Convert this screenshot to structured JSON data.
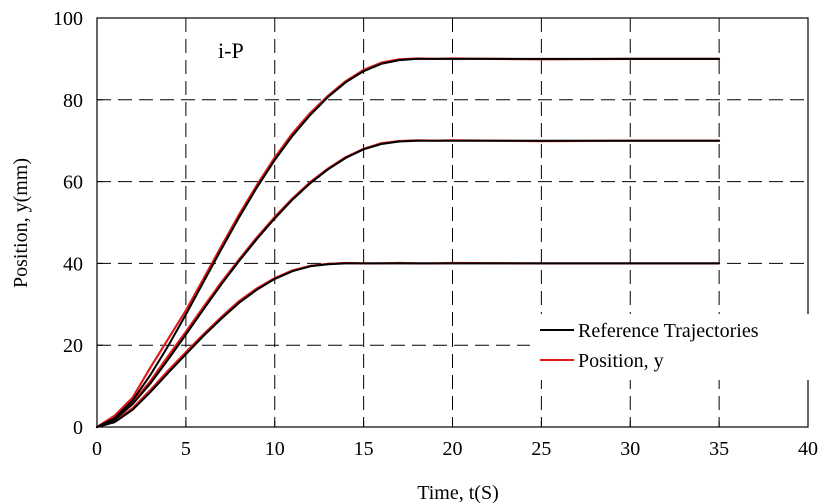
{
  "chart_data": {
    "type": "line",
    "title": "",
    "annotation": "i-P",
    "xlabel": "Time, t(S)",
    "ylabel": "Position, y(mm)",
    "xlim": [
      0,
      40
    ],
    "ylim": [
      0,
      100
    ],
    "x_ticks": [
      0,
      5,
      10,
      15,
      20,
      25,
      30,
      35,
      40
    ],
    "y_ticks": [
      0,
      20,
      40,
      60,
      80,
      100
    ],
    "grid": true,
    "legend_position": "bottom-right",
    "legend": [
      "Reference Trajectories",
      "Position, y"
    ],
    "colors": {
      "reference": "#000000",
      "position": "#e01b1b"
    },
    "x": [
      0,
      1,
      2,
      3,
      4,
      5,
      6,
      7,
      8,
      9,
      10,
      11,
      12,
      13,
      14,
      15,
      16,
      17,
      18,
      19,
      20,
      25,
      30,
      35
    ],
    "series": [
      {
        "name": "Reference Trajectories",
        "target": 40,
        "values": [
          0,
          1.2,
          4.2,
          8.5,
          13.2,
          17.8,
          22.3,
          26.5,
          30.4,
          33.6,
          36.2,
          38.1,
          39.3,
          39.8,
          40,
          40,
          40,
          40,
          40,
          40,
          40,
          40,
          40,
          40
        ]
      },
      {
        "name": "Reference Trajectories",
        "target": 70,
        "values": [
          0,
          1.8,
          5.6,
          10.6,
          16.5,
          22.6,
          28.8,
          34.9,
          40.6,
          46.0,
          51.0,
          55.6,
          59.6,
          63.0,
          65.8,
          67.9,
          69.2,
          69.8,
          70,
          70,
          70,
          70,
          70,
          70
        ]
      },
      {
        "name": "Reference Trajectories",
        "target": 90,
        "values": [
          0,
          2.2,
          6.5,
          12.7,
          19.8,
          27.5,
          35.5,
          43.5,
          51.3,
          58.6,
          65.3,
          71.2,
          76.3,
          80.7,
          84.3,
          87.0,
          88.8,
          89.7,
          90,
          90,
          90,
          90,
          90,
          90
        ]
      },
      {
        "name": "Position, y",
        "target": 40,
        "values": [
          0,
          1.5,
          4.6,
          9.0,
          13.8,
          18.3,
          22.7,
          26.9,
          30.8,
          33.9,
          36.4,
          38.3,
          39.4,
          39.9,
          40.1,
          40,
          40,
          40.1,
          40,
          40,
          40.1,
          40,
          40,
          40
        ]
      },
      {
        "name": "Position, y",
        "target": 70,
        "values": [
          0,
          2.2,
          6.0,
          11.2,
          17.3,
          23.3,
          29.4,
          35.4,
          41.0,
          46.4,
          51.4,
          55.9,
          59.9,
          63.2,
          66.0,
          68.0,
          69.4,
          69.9,
          70.1,
          70,
          70.1,
          69.9,
          70,
          70
        ]
      },
      {
        "name": "Position, y",
        "target": 90,
        "values": [
          0,
          2.8,
          7.2,
          14.5,
          21.5,
          28.5,
          36.3,
          44.2,
          52.0,
          59.2,
          65.9,
          71.8,
          76.8,
          81.0,
          84.6,
          87.3,
          89.1,
          89.9,
          90.1,
          90,
          90.1,
          89.9,
          90,
          90
        ]
      }
    ]
  }
}
